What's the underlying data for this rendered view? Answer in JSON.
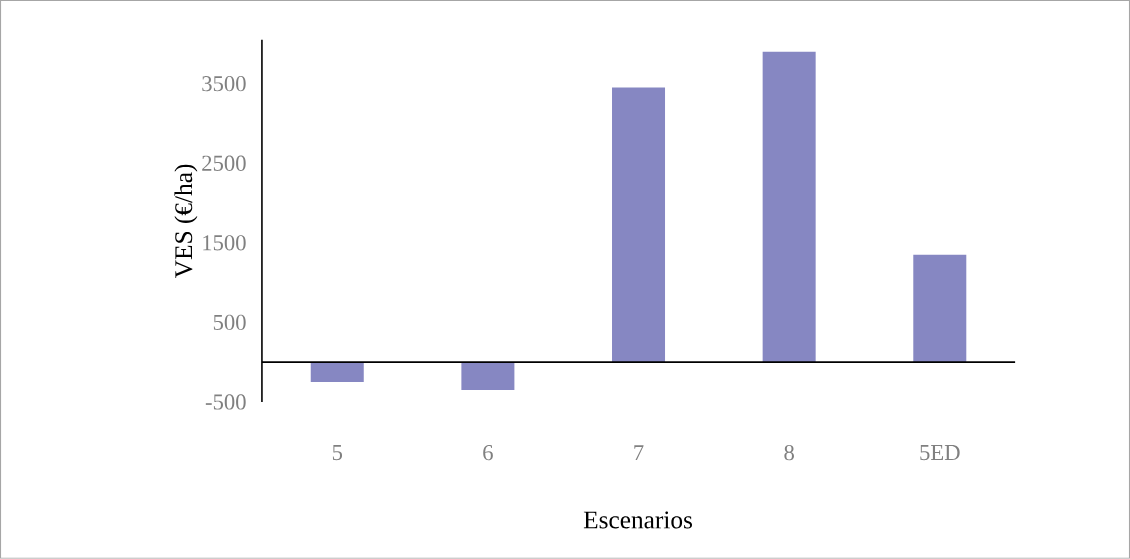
{
  "chart_data": {
    "type": "bar",
    "xlabel": "Escenarios",
    "ylabel": "VES (€/ha)",
    "categories": [
      "5",
      "6",
      "7",
      "8",
      "5ED"
    ],
    "values": [
      -250,
      -350,
      3450,
      3900,
      1350
    ],
    "color": "#8687c2",
    "ylim": [
      -500,
      4050
    ],
    "yticks": [
      -500,
      500,
      1500,
      2500,
      3500
    ],
    "grid": false
  }
}
